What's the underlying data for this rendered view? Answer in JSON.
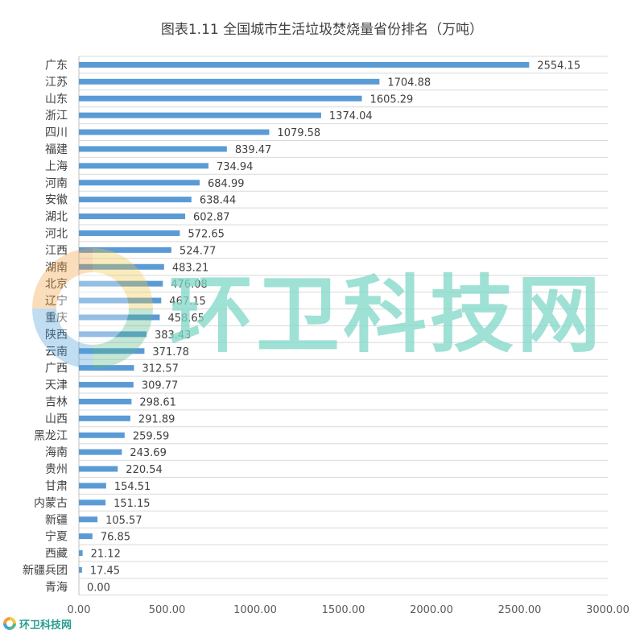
{
  "chart_data": {
    "type": "bar",
    "orientation": "horizontal",
    "title": "图表1.11 全国城市生活垃圾焚烧量省份排名（万吨）",
    "categories": [
      "广东",
      "江苏",
      "山东",
      "浙江",
      "四川",
      "福建",
      "上海",
      "河南",
      "安徽",
      "湖北",
      "河北",
      "江西",
      "湖南",
      "北京",
      "辽宁",
      "重庆",
      "陕西",
      "云南",
      "广西",
      "天津",
      "吉林",
      "山西",
      "黑龙江",
      "海南",
      "贵州",
      "甘肃",
      "内蒙古",
      "新疆",
      "宁夏",
      "西藏",
      "新疆兵团",
      "青海"
    ],
    "values": [
      2554.15,
      1704.88,
      1605.29,
      1374.04,
      1079.58,
      839.47,
      734.94,
      684.99,
      638.44,
      602.87,
      572.65,
      524.77,
      483.21,
      476.08,
      467.15,
      458.65,
      383.43,
      371.78,
      312.57,
      309.77,
      298.61,
      291.89,
      259.59,
      243.69,
      220.54,
      154.51,
      151.15,
      105.57,
      76.85,
      21.12,
      17.45,
      0.0
    ],
    "value_labels": [
      "2554.15",
      "1704.88",
      "1605.29",
      "1374.04",
      "1079.58",
      "839.47",
      "734.94",
      "684.99",
      "638.44",
      "602.87",
      "572.65",
      "524.77",
      "483.21",
      "476.08",
      "467.15",
      "458.65",
      "383.43",
      "371.78",
      "312.57",
      "309.77",
      "298.61",
      "291.89",
      "259.59",
      "243.69",
      "220.54",
      "154.51",
      "151.15",
      "105.57",
      "76.85",
      "21.12",
      "17.45",
      "0.00"
    ],
    "xlim": [
      0,
      3000
    ],
    "xticks": [
      "0.00",
      "500.00",
      "1000.00",
      "1500.00",
      "2000.00",
      "2500.00",
      "3000.00"
    ],
    "grid": true,
    "bar_color": "#5b9bd5"
  },
  "watermark": {
    "text": "环卫科技网"
  },
  "footer": {
    "brand": "环卫科技网"
  }
}
